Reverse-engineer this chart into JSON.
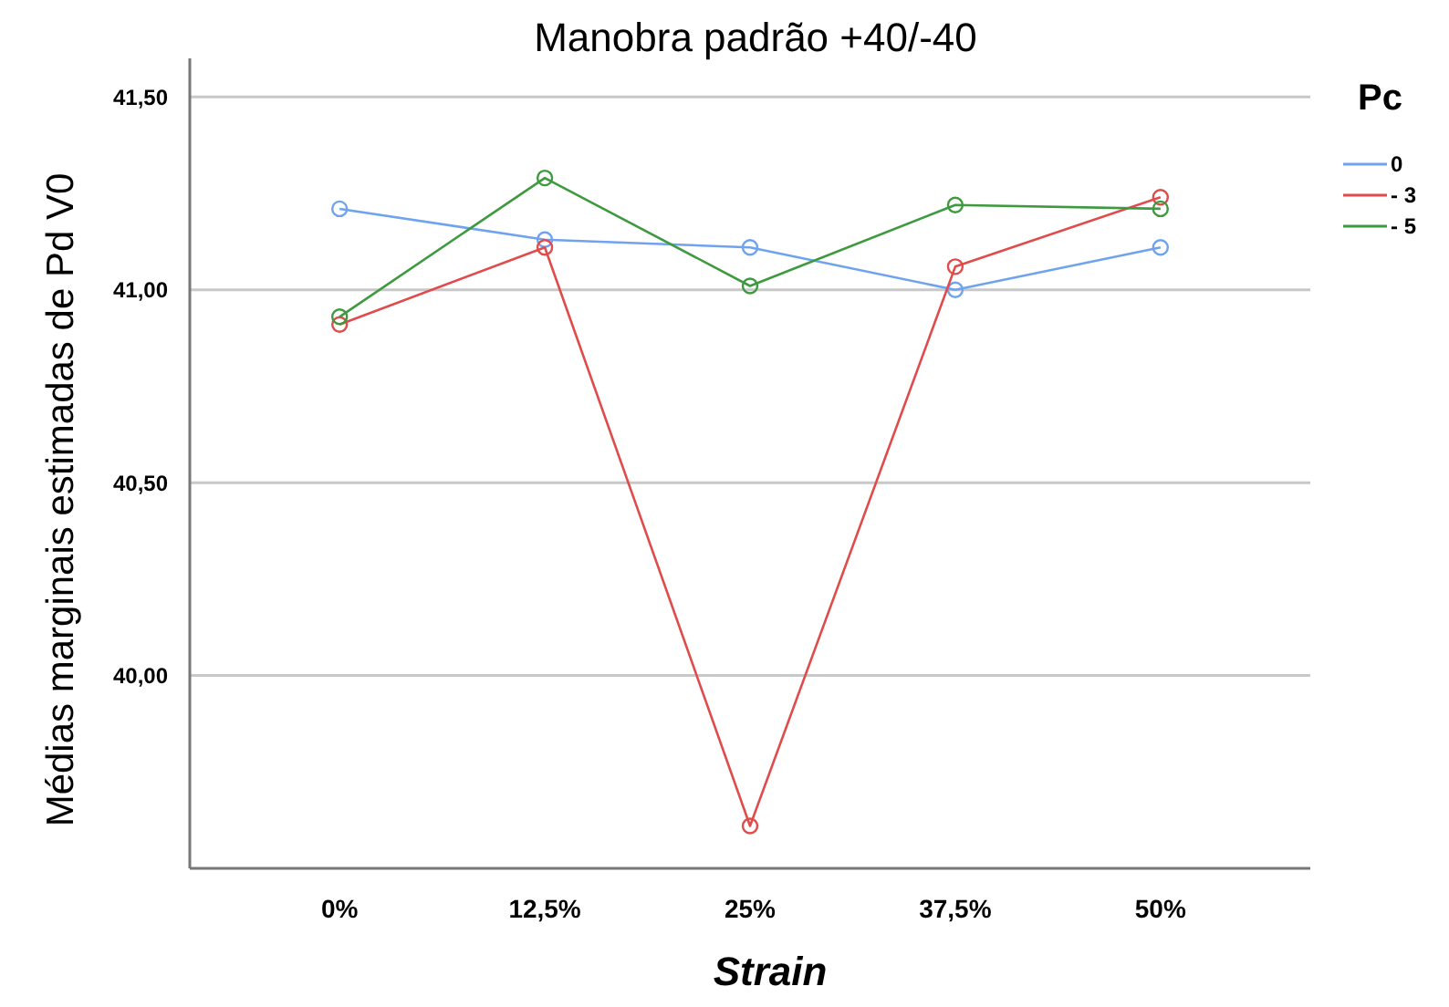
{
  "chart_data": {
    "type": "line",
    "title": "Manobra padrão +40/-40",
    "xlabel": "Strain",
    "ylabel": "Médias marginais estimadas de Pd V0",
    "legend_title": "Pc",
    "categories": [
      "0%",
      "12,5%",
      "25%",
      "37,5%",
      "50%"
    ],
    "series": [
      {
        "name": "0",
        "color": "#6fa3ee",
        "values": [
          41.21,
          41.13,
          41.11,
          41.0,
          41.11
        ]
      },
      {
        "name": "- 3",
        "color": "#e04b4b",
        "values": [
          40.91,
          41.11,
          39.61,
          41.06,
          41.24
        ]
      },
      {
        "name": "- 5",
        "color": "#3f9a3f",
        "values": [
          40.93,
          41.29,
          41.01,
          41.22,
          41.21
        ]
      }
    ],
    "ylim": [
      39.5,
      41.6
    ],
    "yticks": [
      {
        "value": 40,
        "label": "40,00"
      },
      {
        "value": 40.5,
        "label": "40,50"
      },
      {
        "value": 41,
        "label": "41,00"
      },
      {
        "value": 41.5,
        "label": "41,50"
      }
    ],
    "grid": "y",
    "legend": "top right",
    "marker": "circle",
    "line_style": "solid"
  }
}
